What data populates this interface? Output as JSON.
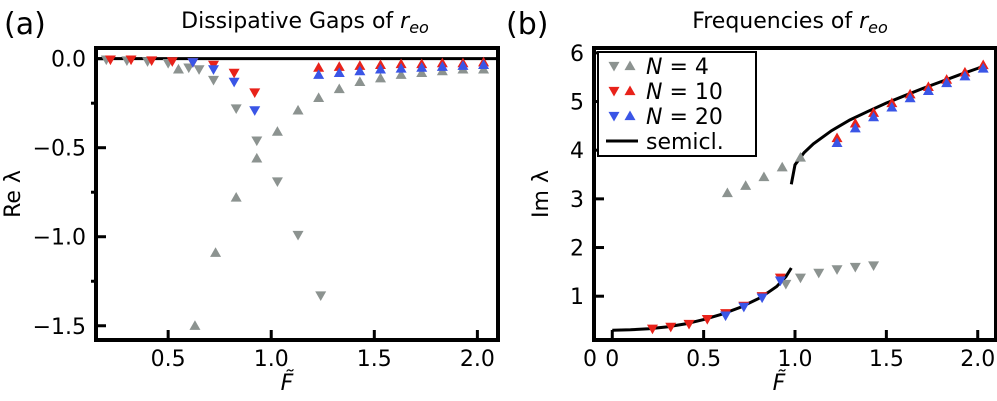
{
  "chart_data": [
    {
      "panel_label": "(a)",
      "type": "scatter",
      "title_main": "Dissipative Gaps of ",
      "title_sym": "r",
      "title_sub": "eo",
      "xlabel": "F̃",
      "ylabel": "Re λ",
      "xlim": [
        0.15,
        2.1
      ],
      "ylim": [
        -1.58,
        0.06
      ],
      "x_ticks": [
        0.5,
        1.0,
        1.5,
        2.0
      ],
      "x_tick_labels": [
        "0.5",
        "1.0",
        "1.5",
        "2.0"
      ],
      "y_ticks": [
        0.0,
        -0.5,
        -1.0,
        -1.5
      ],
      "y_tick_labels": [
        "0.0",
        "−0.5",
        "−1.0",
        "−1.5"
      ],
      "reference_line_y": 0.0,
      "series": [
        {
          "name": "N = 4",
          "marker": "down",
          "color": "#8c9390",
          "points": [
            [
              0.2,
              -0.005
            ],
            [
              0.3,
              -0.01
            ],
            [
              0.4,
              -0.015
            ],
            [
              0.5,
              -0.025
            ],
            [
              0.6,
              -0.05
            ],
            [
              0.65,
              -0.06
            ],
            [
              0.72,
              -0.12
            ],
            [
              0.83,
              -0.28
            ],
            [
              0.93,
              -0.46
            ],
            [
              1.03,
              -0.69
            ],
            [
              1.13,
              -0.99
            ],
            [
              1.24,
              -1.33
            ]
          ]
        },
        {
          "name": "N = 4",
          "marker": "up",
          "color": "#8c9390",
          "points": [
            [
              0.55,
              -0.06
            ],
            [
              0.63,
              -1.5
            ],
            [
              0.73,
              -1.09
            ],
            [
              0.83,
              -0.78
            ],
            [
              0.93,
              -0.56
            ],
            [
              1.03,
              -0.41
            ],
            [
              1.13,
              -0.29
            ],
            [
              1.23,
              -0.22
            ],
            [
              1.33,
              -0.17
            ],
            [
              1.43,
              -0.13
            ],
            [
              1.53,
              -0.11
            ],
            [
              1.63,
              -0.09
            ],
            [
              1.73,
              -0.08
            ],
            [
              1.83,
              -0.07
            ],
            [
              1.93,
              -0.06
            ],
            [
              2.03,
              -0.06
            ]
          ]
        },
        {
          "name": "N = 10",
          "marker": "down",
          "color": "#e8221a",
          "points": [
            [
              0.22,
              -0.005
            ],
            [
              0.32,
              -0.005
            ],
            [
              0.42,
              -0.01
            ],
            [
              0.52,
              -0.015
            ],
            [
              0.62,
              -0.02
            ],
            [
              0.72,
              -0.035
            ],
            [
              0.82,
              -0.08
            ],
            [
              0.92,
              -0.19
            ]
          ]
        },
        {
          "name": "N = 10",
          "marker": "up",
          "color": "#e8221a",
          "points": [
            [
              1.23,
              -0.05
            ],
            [
              1.33,
              -0.045
            ],
            [
              1.43,
              -0.04
            ],
            [
              1.53,
              -0.035
            ],
            [
              1.63,
              -0.03
            ],
            [
              1.73,
              -0.03
            ],
            [
              1.83,
              -0.025
            ],
            [
              1.93,
              -0.025
            ],
            [
              2.03,
              -0.02
            ]
          ]
        },
        {
          "name": "N = 20",
          "marker": "down",
          "color": "#3a55e6",
          "points": [
            [
              0.62,
              -0.02
            ],
            [
              0.72,
              -0.06
            ],
            [
              0.82,
              -0.13
            ],
            [
              0.92,
              -0.29
            ]
          ]
        },
        {
          "name": "N = 20",
          "marker": "up",
          "color": "#3a55e6",
          "points": [
            [
              1.23,
              -0.09
            ],
            [
              1.33,
              -0.08
            ],
            [
              1.43,
              -0.07
            ],
            [
              1.53,
              -0.06
            ],
            [
              1.63,
              -0.055
            ],
            [
              1.73,
              -0.05
            ],
            [
              1.83,
              -0.045
            ],
            [
              1.93,
              -0.04
            ],
            [
              2.03,
              -0.035
            ]
          ]
        }
      ]
    },
    {
      "panel_label": "(b)",
      "type": "scatter",
      "title_main": "Frequencies of ",
      "title_sym": "r",
      "title_sub": "eo",
      "xlabel": "F̃",
      "ylabel": "Im λ",
      "xlim": [
        -0.1,
        2.1
      ],
      "ylim": [
        0.1,
        6.1
      ],
      "x_ticks": [
        0.0,
        0.5,
        1.0,
        1.5,
        2.0
      ],
      "x_tick_labels": [
        "0",
        "0.5",
        "1.0",
        "1.5",
        "2.0"
      ],
      "extra_x_label": "0",
      "y_ticks": [
        1,
        2,
        3,
        4,
        5,
        6
      ],
      "y_tick_labels": [
        "1",
        "2",
        "3",
        "4",
        "5",
        "6"
      ],
      "legend_position": "top-left",
      "legend": [
        {
          "label": "N = 4",
          "var": "N",
          "val": " = 4",
          "color": "#8c9390",
          "kind": "markers"
        },
        {
          "label": "N = 10",
          "var": "N",
          "val": " = 10",
          "color": "#e8221a",
          "kind": "markers"
        },
        {
          "label": "N = 20",
          "var": "N",
          "val": " = 20",
          "color": "#3a55e6",
          "kind": "markers"
        },
        {
          "label": "semicl.",
          "var": "",
          "val": "semicl.",
          "color": "#000000",
          "kind": "line"
        }
      ],
      "series": [
        {
          "name": "N = 4",
          "marker": "up",
          "color": "#8c9390",
          "points": [
            [
              0.63,
              3.12
            ],
            [
              0.73,
              3.27
            ],
            [
              0.83,
              3.45
            ],
            [
              0.93,
              3.65
            ],
            [
              1.03,
              3.85
            ]
          ]
        },
        {
          "name": "N = 4",
          "marker": "down",
          "color": "#8c9390",
          "points": [
            [
              0.95,
              1.25
            ],
            [
              1.03,
              1.38
            ],
            [
              1.13,
              1.48
            ],
            [
              1.23,
              1.55
            ],
            [
              1.33,
              1.6
            ],
            [
              1.43,
              1.63
            ]
          ]
        },
        {
          "name": "N = 10",
          "marker": "down",
          "color": "#e8221a",
          "points": [
            [
              0.22,
              0.33
            ],
            [
              0.32,
              0.37
            ],
            [
              0.42,
              0.43
            ],
            [
              0.52,
              0.53
            ],
            [
              0.62,
              0.65
            ],
            [
              0.72,
              0.8
            ],
            [
              0.82,
              1.0
            ],
            [
              0.92,
              1.38
            ]
          ]
        },
        {
          "name": "N = 10",
          "marker": "up",
          "color": "#e8221a",
          "points": [
            [
              1.23,
              4.25
            ],
            [
              1.33,
              4.55
            ],
            [
              1.43,
              4.77
            ],
            [
              1.53,
              4.97
            ],
            [
              1.63,
              5.15
            ],
            [
              1.73,
              5.3
            ],
            [
              1.83,
              5.45
            ],
            [
              1.93,
              5.6
            ],
            [
              2.03,
              5.75
            ]
          ]
        },
        {
          "name": "N = 20",
          "marker": "down",
          "color": "#3a55e6",
          "points": [
            [
              0.62,
              0.6
            ],
            [
              0.72,
              0.78
            ],
            [
              0.82,
              0.97
            ],
            [
              0.92,
              1.32
            ]
          ]
        },
        {
          "name": "N = 20",
          "marker": "up",
          "color": "#3a55e6",
          "points": [
            [
              1.23,
              4.15
            ],
            [
              1.33,
              4.45
            ],
            [
              1.43,
              4.68
            ],
            [
              1.53,
              4.88
            ],
            [
              1.63,
              5.07
            ],
            [
              1.73,
              5.22
            ],
            [
              1.83,
              5.38
            ],
            [
              1.93,
              5.52
            ],
            [
              2.03,
              5.68
            ]
          ]
        }
      ],
      "semiclassical_curves": [
        {
          "points": [
            [
              0.0,
              0.3
            ],
            [
              0.1,
              0.31
            ],
            [
              0.2,
              0.33
            ],
            [
              0.3,
              0.37
            ],
            [
              0.4,
              0.43
            ],
            [
              0.5,
              0.52
            ],
            [
              0.6,
              0.63
            ],
            [
              0.7,
              0.77
            ],
            [
              0.8,
              0.95
            ],
            [
              0.85,
              1.07
            ],
            [
              0.9,
              1.2
            ],
            [
              0.95,
              1.4
            ],
            [
              0.98,
              1.58
            ]
          ]
        },
        {
          "points": [
            [
              0.98,
              3.3
            ],
            [
              1.0,
              3.7
            ],
            [
              1.05,
              3.95
            ],
            [
              1.1,
              4.13
            ],
            [
              1.2,
              4.4
            ],
            [
              1.3,
              4.62
            ],
            [
              1.4,
              4.8
            ],
            [
              1.5,
              4.97
            ],
            [
              1.6,
              5.12
            ],
            [
              1.7,
              5.27
            ],
            [
              1.8,
              5.41
            ],
            [
              1.9,
              5.55
            ],
            [
              2.0,
              5.68
            ],
            [
              2.04,
              5.74
            ]
          ]
        }
      ]
    }
  ]
}
